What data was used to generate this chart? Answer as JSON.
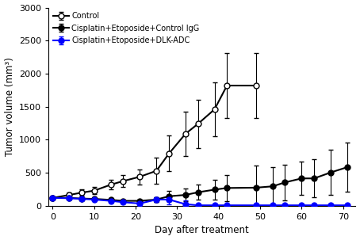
{
  "xlabel": "Day after treatment",
  "ylabel": "Tumor volume (mm3)",
  "xlim": [
    -1,
    73
  ],
  "ylim": [
    0,
    3000
  ],
  "yticks": [
    0,
    500,
    1000,
    1500,
    2000,
    2500,
    3000
  ],
  "xticks": [
    0,
    10,
    20,
    30,
    40,
    50,
    60,
    70
  ],
  "legend_entries": [
    "Control",
    "Cisplatin+Etoposide+Control IgG",
    "Cisplatin+Etoposide+DLK-ADC"
  ],
  "control": {
    "x": [
      0,
      4,
      7,
      10,
      14,
      17,
      21,
      25,
      28,
      32,
      35,
      39,
      42,
      49
    ],
    "y": [
      120,
      165,
      200,
      230,
      320,
      375,
      440,
      530,
      790,
      1090,
      1240,
      1460,
      1820,
      1820
    ],
    "yerr": [
      15,
      35,
      45,
      55,
      75,
      95,
      115,
      195,
      270,
      340,
      370,
      410,
      490,
      490
    ],
    "color": "#000000",
    "markerfacecolor": "white"
  },
  "control_igg": {
    "x": [
      0,
      4,
      7,
      10,
      14,
      17,
      21,
      25,
      28,
      32,
      35,
      39,
      42,
      49,
      53,
      56,
      60,
      63,
      67,
      71
    ],
    "y": [
      120,
      120,
      110,
      105,
      90,
      75,
      75,
      95,
      145,
      165,
      205,
      245,
      270,
      275,
      295,
      355,
      415,
      415,
      505,
      585
    ],
    "yerr": [
      15,
      15,
      18,
      18,
      18,
      18,
      18,
      38,
      78,
      95,
      115,
      145,
      195,
      340,
      290,
      270,
      250,
      290,
      340,
      370
    ],
    "color": "#000000",
    "markerfacecolor": "#000000"
  },
  "dlk_adc": {
    "x": [
      0,
      4,
      7,
      10,
      14,
      17,
      21,
      25,
      28,
      32,
      35,
      39,
      42,
      49,
      53,
      56,
      60,
      63,
      67,
      71
    ],
    "y": [
      120,
      115,
      105,
      95,
      75,
      55,
      35,
      95,
      95,
      25,
      8,
      8,
      8,
      8,
      8,
      8,
      8,
      8,
      8,
      8
    ],
    "yerr": [
      15,
      15,
      18,
      18,
      18,
      18,
      18,
      38,
      75,
      55,
      18,
      18,
      18,
      18,
      18,
      18,
      18,
      18,
      18,
      18
    ],
    "color": "#0000ff",
    "markerfacecolor": "#0000ff"
  },
  "linewidth": 1.5,
  "markersize": 5,
  "capsize": 2.5
}
